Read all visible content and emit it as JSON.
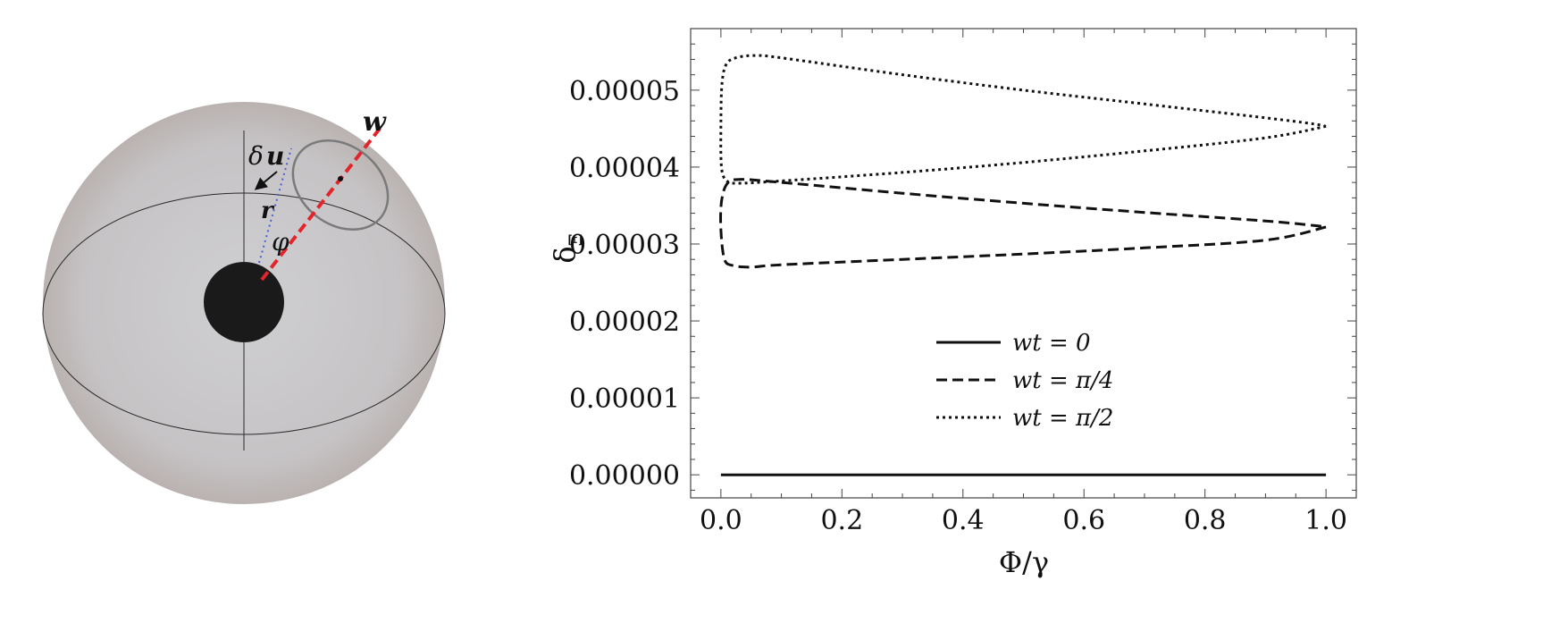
{
  "diagram": {
    "labels": {
      "w": "w",
      "delta_u_delta": "δ",
      "delta_u_u": "u",
      "r": "r",
      "phi": "φ"
    },
    "colors": {
      "sphere_center": "#cccccc",
      "sphere_edge": "#b9b2b0",
      "black_hole": "#1a1a1a",
      "w_axis": "#e3242b",
      "r_line": "#4a5fd6",
      "orbit": "#7a7a7a"
    }
  },
  "chart_data": {
    "type": "line",
    "xlabel": "Φ/γ",
    "ylabel": "δ_Ξ",
    "ylabel_main": "δ",
    "ylabel_sub": "Ξ",
    "xlim": [
      -0.05,
      1.05
    ],
    "ylim": [
      -3e-06,
      5.8e-05
    ],
    "x_ticks": [
      0.0,
      0.2,
      0.4,
      0.6,
      0.8,
      1.0
    ],
    "x_tick_labels": [
      "0.0",
      "0.2",
      "0.4",
      "0.6",
      "0.8",
      "1.0"
    ],
    "y_ticks": [
      0.0,
      1e-05,
      2e-05,
      3e-05,
      4e-05,
      5e-05
    ],
    "y_tick_labels": [
      "0.00000",
      "0.00001",
      "0.00002",
      "0.00003",
      "0.00004",
      "0.00005"
    ],
    "legend_position": "center",
    "grid": false,
    "series": [
      {
        "name": "wt = 0",
        "style": "solid",
        "x": [
          0.0,
          0.25,
          0.5,
          0.75,
          1.0
        ],
        "y": [
          0.0,
          0.0,
          0.0,
          0.0,
          0.0
        ]
      },
      {
        "name": "wt = π/4",
        "style": "dashed",
        "x": [
          1.0,
          0.9,
          0.7,
          0.5,
          0.3,
          0.1,
          0.05,
          0.02,
          0.006,
          0.0,
          0.001,
          0.01,
          0.03,
          0.1,
          0.3,
          0.5,
          0.7,
          0.9,
          0.98,
          1.0
        ],
        "y": [
          3.22e-05,
          3.05e-05,
          2.95e-05,
          2.87e-05,
          2.8e-05,
          2.73e-05,
          2.7e-05,
          2.72e-05,
          2.8e-05,
          3.18e-05,
          3.55e-05,
          3.78e-05,
          3.84e-05,
          3.8e-05,
          3.66e-05,
          3.53e-05,
          3.41e-05,
          3.3e-05,
          3.24e-05,
          3.22e-05
        ]
      },
      {
        "name": "wt = π/2",
        "style": "dotted",
        "x": [
          1.0,
          0.9,
          0.7,
          0.5,
          0.3,
          0.1,
          0.03,
          0.01,
          0.001,
          0.0,
          0.002,
          0.01,
          0.03,
          0.06,
          0.1,
          0.3,
          0.5,
          0.7,
          0.9,
          0.98,
          1.0
        ],
        "y": [
          4.53e-05,
          4.38e-05,
          4.21e-05,
          4.06e-05,
          3.93e-05,
          3.82e-05,
          3.79e-05,
          3.82e-05,
          4e-05,
          4.6e-05,
          5.1e-05,
          5.35e-05,
          5.43e-05,
          5.45e-05,
          5.42e-05,
          5.2e-05,
          5e-05,
          4.82e-05,
          4.64e-05,
          4.56e-05,
          4.53e-05
        ]
      }
    ]
  }
}
